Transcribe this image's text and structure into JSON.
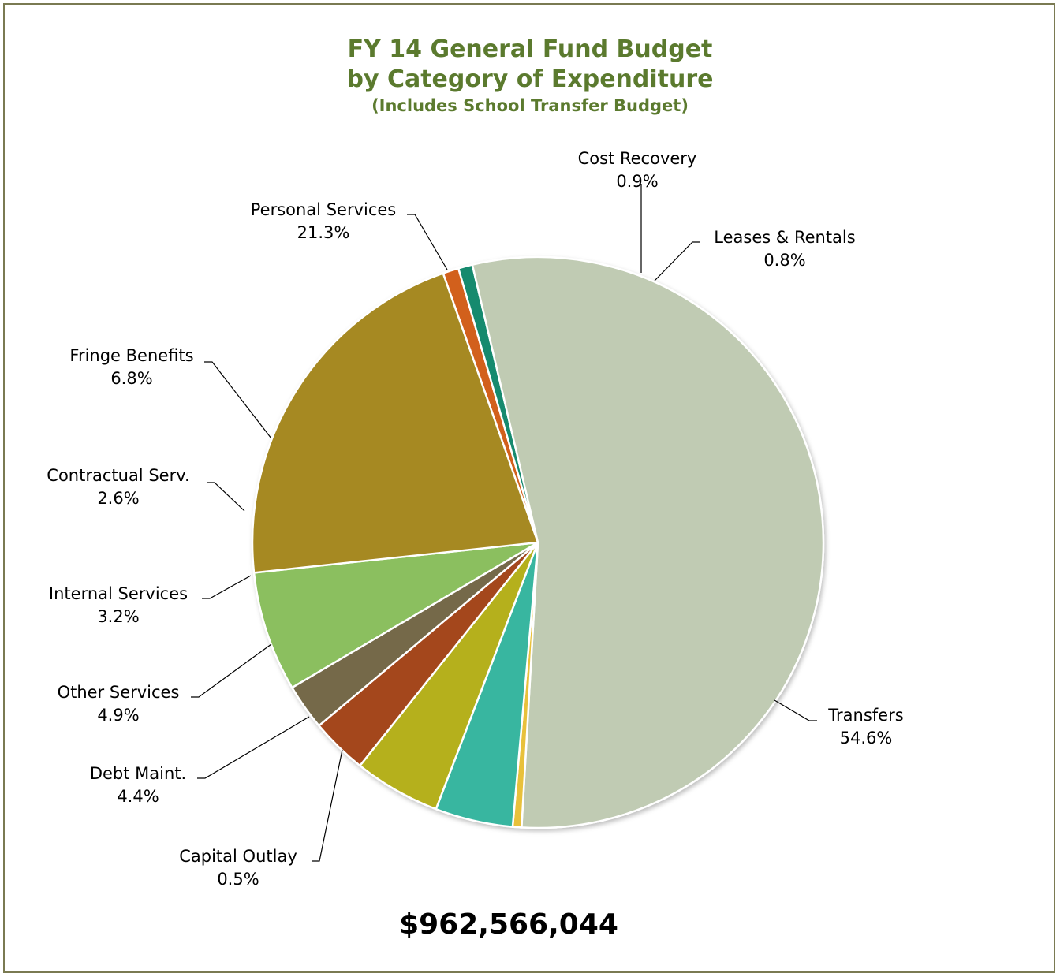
{
  "chart_data": {
    "type": "pie",
    "title": "FY 14 General Fund Budget",
    "title_line2": "by Category of Expenditure",
    "subtitle": "(Includes School Transfer Budget)",
    "total_label": "$962,566,044",
    "slices": [
      {
        "name": "Cost Recovery",
        "value": 0.9,
        "label": "0.9%",
        "color": "#d2611f"
      },
      {
        "name": "Leases & Rentals",
        "value": 0.8,
        "label": "0.8%",
        "color": "#138a6e"
      },
      {
        "name": "Transfers",
        "value": 54.6,
        "label": "54.6%",
        "color": "#c0cbb3"
      },
      {
        "name": "Capital Outlay",
        "value": 0.5,
        "label": "0.5%",
        "color": "#e8c13a"
      },
      {
        "name": "Debt Maint.",
        "value": 4.4,
        "label": "4.4%",
        "color": "#38b6a0"
      },
      {
        "name": "Other Services",
        "value": 4.9,
        "label": "4.9%",
        "color": "#b5b01e"
      },
      {
        "name": "Internal Services",
        "value": 3.2,
        "label": "3.2%",
        "color": "#a4461e"
      },
      {
        "name": "Contractual Serv.",
        "value": 2.6,
        "label": "2.6%",
        "color": "#746948"
      },
      {
        "name": "Fringe Benefits",
        "value": 6.8,
        "label": "6.8%",
        "color": "#8bbf5f"
      },
      {
        "name": "Personal Services",
        "value": 21.3,
        "label": "21.3%",
        "color": "#a68924"
      }
    ]
  }
}
